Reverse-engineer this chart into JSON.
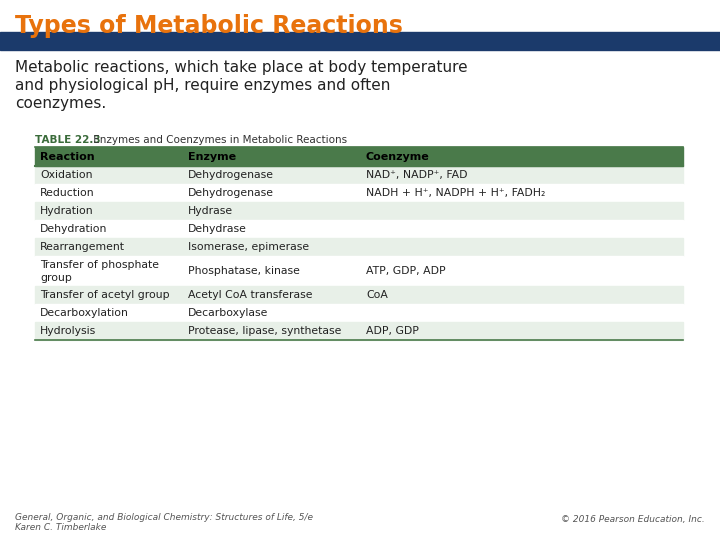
{
  "title": "Types of Metabolic Reactions",
  "title_color": "#E8720C",
  "header_bar_color": "#1B3A6B",
  "bg_color": "#FFFFFF",
  "subtitle_line1": "Metabolic reactions, which take place at body temperature",
  "subtitle_line2": "and physiological pH, require enzymes and often",
  "subtitle_line3": "coenzymes.",
  "subtitle_color": "#222222",
  "table_title_bold": "TABLE 22.3",
  "table_title_regular": " Enzymes and Coenzymes in Metabolic Reactions",
  "table_title_bold_color": "#3A6B3A",
  "col_headers": [
    "Reaction",
    "Enzyme",
    "Coenzyme"
  ],
  "col_header_bg": "#4A7A4A",
  "rows": [
    [
      "Oxidation",
      "Dehydrogenase",
      "NAD⁺, NADP⁺, FAD"
    ],
    [
      "Reduction",
      "Dehydrogenase",
      "NADH + H⁺, NADPH + H⁺, FADH₂"
    ],
    [
      "Hydration",
      "Hydrase",
      ""
    ],
    [
      "Dehydration",
      "Dehydrase",
      ""
    ],
    [
      "Rearrangement",
      "Isomerase, epimerase",
      ""
    ],
    [
      "Transfer of phosphate\ngroup",
      "Phosphatase, kinase",
      "ATP, GDP, ADP"
    ],
    [
      "Transfer of acetyl group",
      "Acetyl CoA transferase",
      "CoA"
    ],
    [
      "Decarboxylation",
      "Decarboxylase",
      ""
    ],
    [
      "Hydrolysis",
      "Protease, lipase, synthetase",
      "ADP, GDP"
    ]
  ],
  "row_shaded_color": "#E8F0E8",
  "row_plain_color": "#FFFFFF",
  "table_line_color": "#4A7A4A",
  "footer_left1": "General, Organic, and Biological Chemistry: Structures of Life, 5/e",
  "footer_left2": "Karen C. Timberlake",
  "footer_right": "© 2016 Pearson Education, Inc.",
  "footer_color": "#555555"
}
